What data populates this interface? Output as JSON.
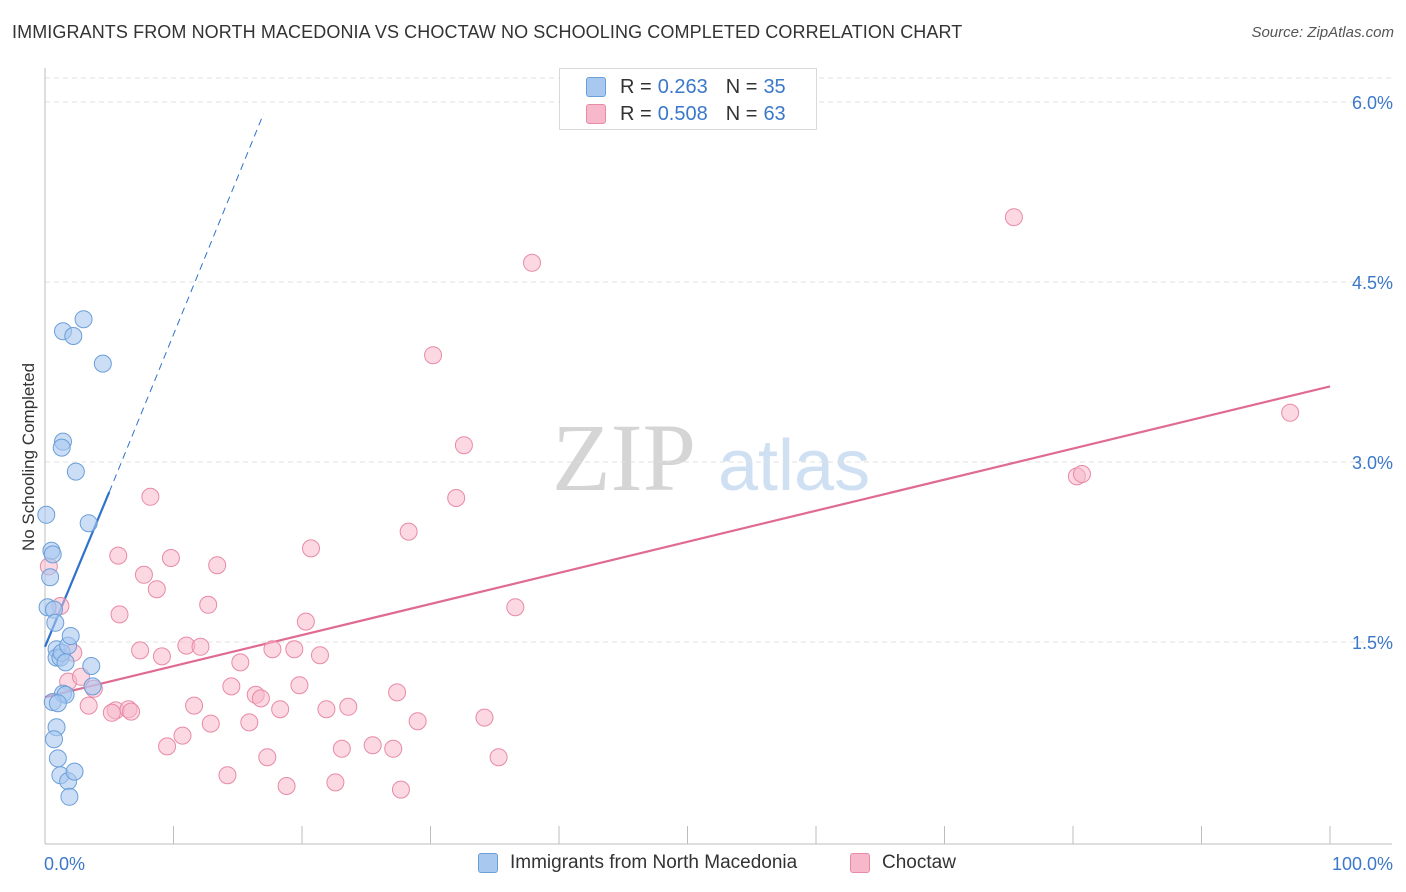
{
  "header": {
    "title": "IMMIGRANTS FROM NORTH MACEDONIA VS CHOCTAW NO SCHOOLING COMPLETED CORRELATION CHART",
    "source": "Source: ZipAtlas.com"
  },
  "watermark": {
    "zip": "ZIP",
    "atlas": "atlas"
  },
  "legend": {
    "rows": [
      {
        "r_label": "R =",
        "r_value": "0.263",
        "n_label": "N =",
        "n_value": "35"
      },
      {
        "r_label": "R =",
        "r_value": "0.508",
        "n_label": "N =",
        "n_value": "63"
      }
    ]
  },
  "colors": {
    "blue_fill": "#a8c8f0",
    "blue_stroke": "#6b9fd8",
    "blue_line": "#2f72cc",
    "pink_fill": "#f7b8cb",
    "pink_stroke": "#e88aa6",
    "pink_line": "#e06b92",
    "axis_text": "#3b78c9",
    "grid": "#e0e0e0"
  },
  "chart_data": {
    "type": "scatter",
    "title": "IMMIGRANTS FROM NORTH MACEDONIA VS CHOCTAW NO SCHOOLING COMPLETED CORRELATION CHART",
    "xlabel": "",
    "ylabel": "No Schooling Completed",
    "xlim": [
      0,
      100
    ],
    "ylim": [
      0,
      6.2
    ],
    "x_tick_labels": [
      "0.0%",
      "100.0%"
    ],
    "y_ticks": [
      1.5,
      3.0,
      4.5,
      6.0
    ],
    "y_tick_labels": [
      "1.5%",
      "3.0%",
      "4.5%",
      "6.0%"
    ],
    "grid": true,
    "legend_position": "top-center",
    "series": [
      {
        "name": "Immigrants from North Macedonia",
        "R": 0.263,
        "N": 35,
        "trend": {
          "x0": 0.0,
          "y0": 1.46,
          "x1": 5.0,
          "y1": 2.75,
          "dashed_to_x": 17.0,
          "dashed_to_y": 5.9
        },
        "points": [
          [
            0.1,
            2.56
          ],
          [
            0.5,
            2.26
          ],
          [
            0.6,
            2.23
          ],
          [
            0.2,
            1.79
          ],
          [
            0.7,
            1.77
          ],
          [
            0.9,
            1.44
          ],
          [
            0.9,
            1.37
          ],
          [
            1.2,
            1.37
          ],
          [
            1.3,
            1.41
          ],
          [
            1.8,
            1.47
          ],
          [
            2.0,
            1.55
          ],
          [
            1.4,
            3.17
          ],
          [
            1.3,
            3.12
          ],
          [
            2.4,
            2.92
          ],
          [
            3.4,
            2.49
          ],
          [
            1.4,
            4.09
          ],
          [
            2.2,
            4.05
          ],
          [
            3.0,
            4.19
          ],
          [
            4.5,
            3.82
          ],
          [
            3.6,
            1.3
          ],
          [
            3.7,
            1.13
          ],
          [
            1.4,
            1.07
          ],
          [
            1.6,
            1.06
          ],
          [
            0.6,
            1.0
          ],
          [
            1.0,
            0.99
          ],
          [
            0.9,
            0.79
          ],
          [
            0.7,
            0.69
          ],
          [
            1.0,
            0.53
          ],
          [
            1.2,
            0.39
          ],
          [
            1.8,
            0.34
          ],
          [
            2.3,
            0.42
          ],
          [
            1.9,
            0.21
          ],
          [
            0.8,
            1.66
          ],
          [
            0.4,
            2.04
          ],
          [
            1.6,
            1.33
          ]
        ]
      },
      {
        "name": "Choctaw",
        "R": 0.508,
        "N": 63,
        "trend": {
          "x0": 0.0,
          "y0": 1.04,
          "x1": 100.0,
          "y1": 3.63
        },
        "points": [
          [
            0.3,
            2.13
          ],
          [
            1.2,
            1.8
          ],
          [
            2.2,
            1.41
          ],
          [
            1.8,
            1.17
          ],
          [
            2.8,
            1.21
          ],
          [
            3.8,
            1.11
          ],
          [
            3.4,
            0.97
          ],
          [
            5.5,
            0.93
          ],
          [
            5.2,
            0.91
          ],
          [
            6.5,
            0.94
          ],
          [
            6.7,
            0.92
          ],
          [
            5.8,
            1.73
          ],
          [
            5.7,
            2.22
          ],
          [
            7.7,
            2.06
          ],
          [
            8.2,
            2.71
          ],
          [
            7.4,
            1.43
          ],
          [
            8.7,
            1.94
          ],
          [
            9.1,
            1.38
          ],
          [
            9.5,
            0.63
          ],
          [
            9.8,
            2.2
          ],
          [
            10.7,
            0.72
          ],
          [
            11.0,
            1.47
          ],
          [
            11.6,
            0.97
          ],
          [
            12.1,
            1.46
          ],
          [
            12.7,
            1.81
          ],
          [
            12.9,
            0.82
          ],
          [
            13.4,
            2.14
          ],
          [
            14.2,
            0.39
          ],
          [
            14.5,
            1.13
          ],
          [
            15.2,
            1.33
          ],
          [
            15.9,
            0.83
          ],
          [
            16.4,
            1.06
          ],
          [
            16.8,
            1.03
          ],
          [
            17.3,
            0.54
          ],
          [
            17.7,
            1.44
          ],
          [
            18.3,
            0.94
          ],
          [
            19.4,
            1.44
          ],
          [
            19.8,
            1.14
          ],
          [
            20.3,
            1.67
          ],
          [
            20.7,
            2.28
          ],
          [
            21.4,
            1.39
          ],
          [
            21.9,
            0.94
          ],
          [
            22.6,
            0.33
          ],
          [
            23.1,
            0.61
          ],
          [
            23.6,
            0.96
          ],
          [
            25.5,
            0.64
          ],
          [
            27.1,
            0.61
          ],
          [
            27.4,
            1.08
          ],
          [
            27.7,
            0.27
          ],
          [
            28.3,
            2.42
          ],
          [
            29.0,
            0.84
          ],
          [
            30.2,
            3.89
          ],
          [
            32.0,
            2.7
          ],
          [
            32.6,
            3.14
          ],
          [
            34.2,
            0.87
          ],
          [
            35.3,
            0.54
          ],
          [
            36.6,
            1.79
          ],
          [
            37.9,
            4.66
          ],
          [
            75.4,
            5.04
          ],
          [
            80.3,
            2.88
          ],
          [
            80.7,
            2.9
          ],
          [
            96.9,
            3.41
          ],
          [
            18.8,
            0.3
          ]
        ]
      }
    ]
  },
  "bottom_legend": [
    {
      "label": "Immigrants from North Macedonia"
    },
    {
      "label": "Choctaw"
    }
  ]
}
